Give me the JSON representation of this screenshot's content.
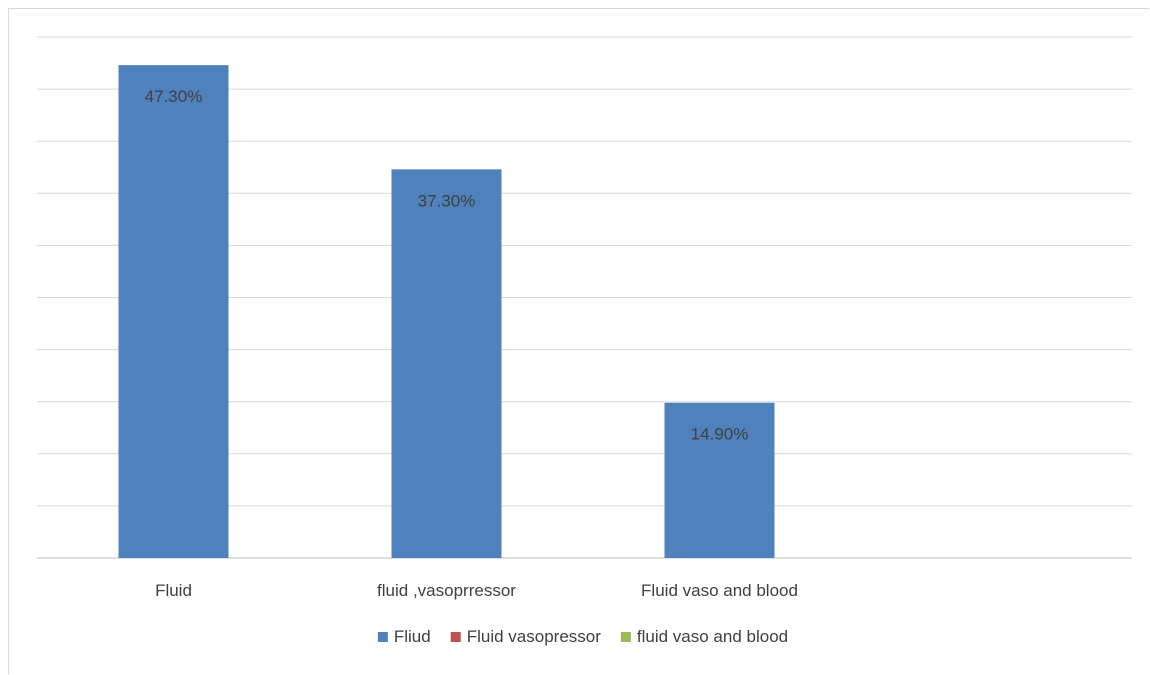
{
  "chart_data": {
    "type": "bar",
    "categories": [
      "Fluid",
      "fluid ,vasoprressor",
      "Fluid vaso and blood"
    ],
    "values": [
      47.3,
      37.3,
      14.9
    ],
    "value_labels": [
      "47.30%",
      "37.30%",
      "14.90%"
    ],
    "bar_color": "#4f81bd",
    "ylim": [
      0,
      50
    ],
    "grid": true,
    "legend": {
      "placement": "bottom",
      "entries": [
        {
          "name": "Fliud",
          "color": "#4f81bd"
        },
        {
          "name": "Fluid vasopressor",
          "color": "#c0504d"
        },
        {
          "name": "fluid vaso and blood",
          "color": "#9bbb59"
        }
      ]
    }
  }
}
